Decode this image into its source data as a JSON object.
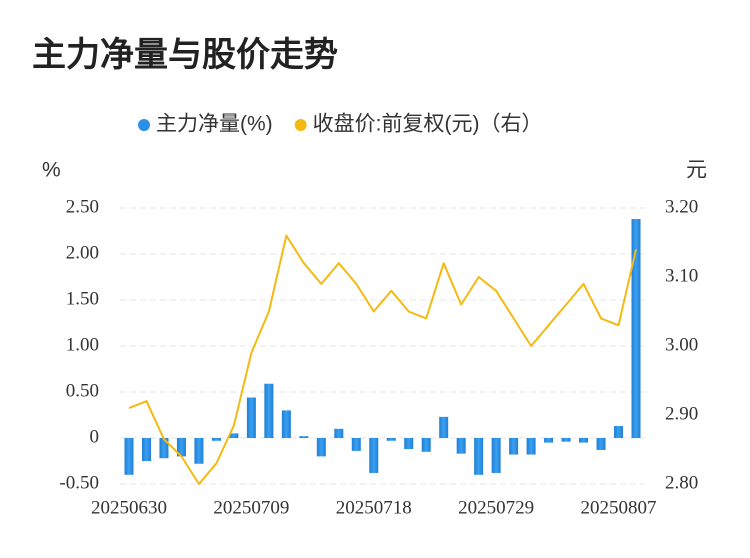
{
  "chart_data": {
    "type": "bar-line",
    "title": "主力净量与股价走势",
    "y_label": "%",
    "y2_label": "元",
    "categories": [
      "20250630",
      null,
      null,
      null,
      null,
      null,
      null,
      "20250709",
      null,
      null,
      null,
      null,
      null,
      null,
      "20250718",
      null,
      null,
      null,
      null,
      null,
      null,
      "20250729",
      null,
      null,
      null,
      null,
      null,
      null,
      "20250807",
      null
    ],
    "series": [
      {
        "name": "主力净量(%)",
        "type": "bar",
        "color": "#2a8fe6",
        "values": [
          -0.4,
          -0.25,
          -0.22,
          -0.2,
          -0.28,
          -0.03,
          0.05,
          0.44,
          0.59,
          0.3,
          0.02,
          -0.2,
          0.1,
          -0.14,
          -0.38,
          -0.03,
          -0.12,
          -0.15,
          0.23,
          -0.17,
          -0.4,
          -0.38,
          -0.18,
          -0.18,
          -0.05,
          -0.04,
          -0.05,
          -0.13,
          0.13,
          2.38
        ]
      },
      {
        "name": "收盘价:前复权(元)（右）",
        "type": "line",
        "axis": "y2",
        "color": "#f5b914",
        "values": [
          2.91,
          2.92,
          2.865,
          2.84,
          2.8,
          2.83,
          2.885,
          2.99,
          3.05,
          3.16,
          3.12,
          3.09,
          3.12,
          3.09,
          3.05,
          3.08,
          3.05,
          3.04,
          3.12,
          3.06,
          3.1,
          3.08,
          3.04,
          3.0,
          3.03,
          3.06,
          3.09,
          3.04,
          3.03,
          3.14
        ]
      }
    ],
    "ylim": [
      -0.5,
      2.5
    ],
    "yticks": [
      {
        "value": -0.5,
        "label": "-0.50"
      },
      0,
      {
        "value": 0.5,
        "label": "0.50"
      },
      {
        "value": 1,
        "label": "1.00"
      },
      {
        "value": 1.5,
        "label": "1.50"
      },
      {
        "value": 2,
        "label": "2.00"
      },
      {
        "value": 2.5,
        "label": "2.50"
      }
    ],
    "y2lim": [
      2.8,
      3.2
    ],
    "y2ticks": [
      {
        "value": 2.8,
        "label": "2.80"
      },
      {
        "value": 2.9,
        "label": "2.90"
      },
      {
        "value": 3.0,
        "label": "3.00"
      },
      {
        "value": 3.1,
        "label": "3.10"
      },
      {
        "value": 3.2,
        "label": "3.20"
      }
    ],
    "grid": true,
    "legend": "top"
  }
}
